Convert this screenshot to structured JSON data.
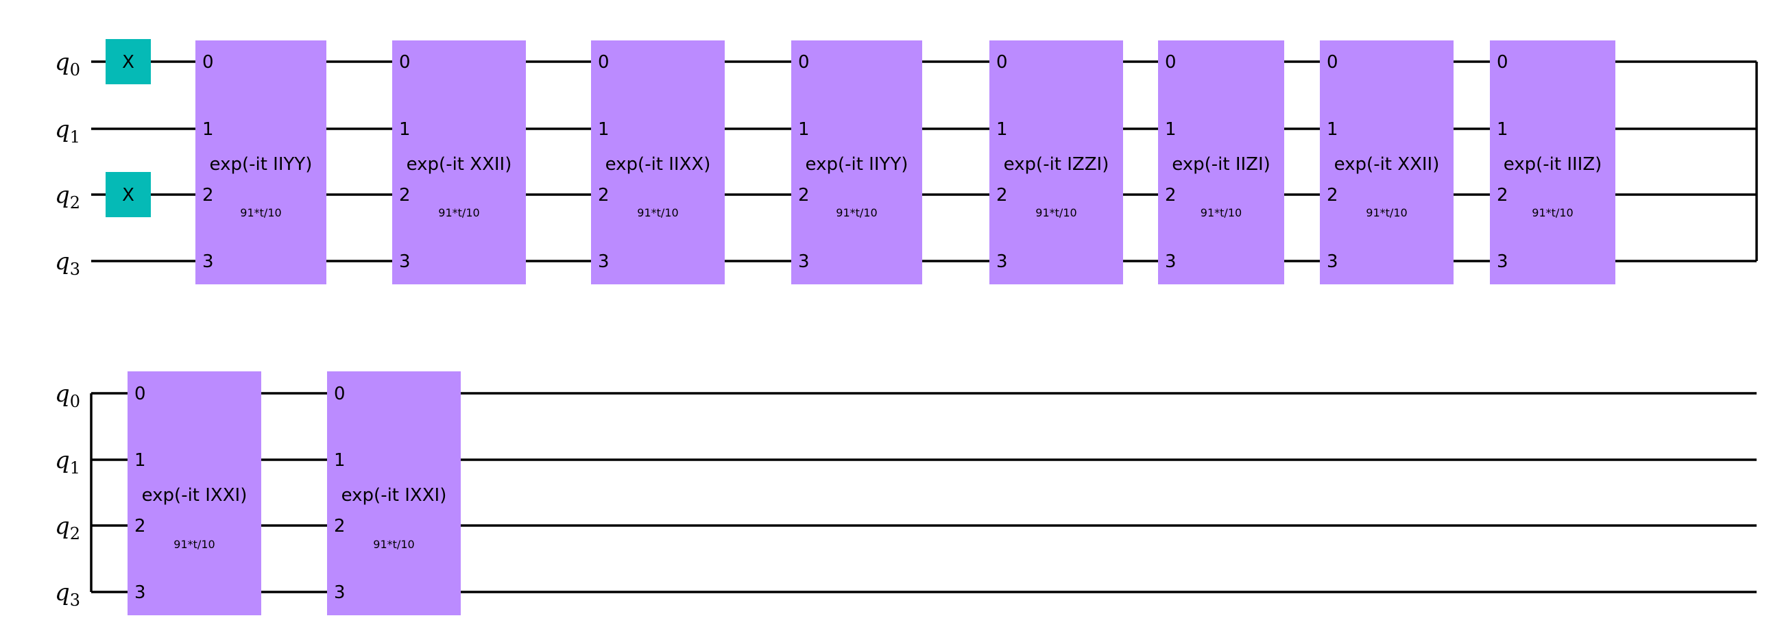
{
  "qubits": [
    "q0",
    "q1",
    "q2",
    "q3"
  ],
  "qubit_names": [
    "q",
    "q",
    "q",
    "q"
  ],
  "qubit_indices": [
    "0",
    "1",
    "2",
    "3"
  ],
  "pins": [
    "0",
    "1",
    "2",
    "3"
  ],
  "x_gate": {
    "label": "X",
    "qubits": [
      0,
      2
    ],
    "color": "#05bab6"
  },
  "gate_color": "#bb8bff",
  "rows": [
    {
      "gates": [
        {
          "label": "exp(-it IIYY)",
          "param": "91*t/10"
        },
        {
          "label": "exp(-it XXII)",
          "param": "91*t/10"
        },
        {
          "label": "exp(-it IIXX)",
          "param": "91*t/10"
        },
        {
          "label": "exp(-it IIYY)",
          "param": "91*t/10"
        },
        {
          "label": "exp(-it IZZI)",
          "param": "91*t/10"
        },
        {
          "label": "exp(-it IIZI)",
          "param": "91*t/10"
        },
        {
          "label": "exp(-it XXII)",
          "param": "91*t/10"
        },
        {
          "label": "exp(-it IIIZ)",
          "param": "91*t/10"
        }
      ]
    },
    {
      "gates": [
        {
          "label": "exp(-it IXXI)",
          "param": "91*t/10"
        },
        {
          "label": "exp(-it IXXI)",
          "param": "91*t/10"
        }
      ]
    }
  ]
}
